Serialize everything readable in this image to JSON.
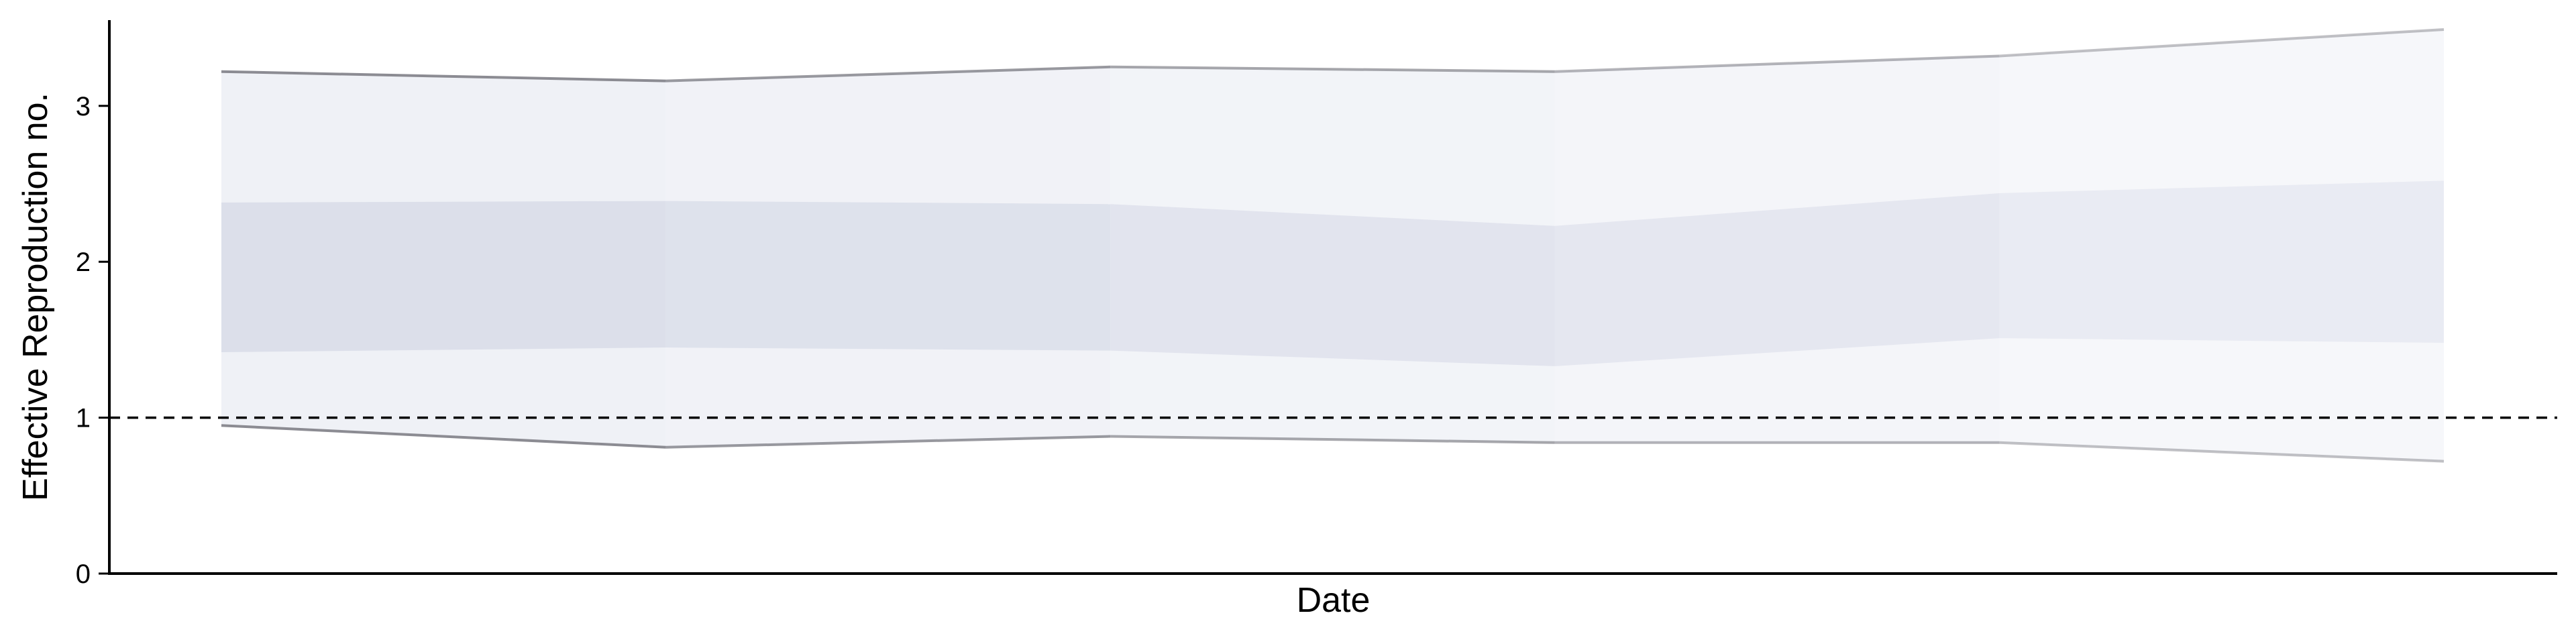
{
  "chart_data": {
    "type": "area",
    "xlabel": "Date",
    "ylabel": "Effective Reproduction no.",
    "x_tick_labels": [],
    "ylim": [
      0,
      3.55
    ],
    "yticks": [
      0,
      1,
      2,
      3
    ],
    "grid": false,
    "reference_line": {
      "y": 1,
      "style": "dashed"
    },
    "series": [
      {
        "points": [
          1,
          2,
          3,
          4,
          5,
          6
        ],
        "upper_90": [
          3.22,
          3.16,
          3.25,
          3.22,
          3.32,
          3.49
        ],
        "lower_90": [
          0.95,
          0.81,
          0.88,
          0.84,
          0.84,
          0.72
        ],
        "upper_50": [
          2.38,
          2.39,
          2.37,
          2.23,
          2.44,
          2.52
        ],
        "lower_50": [
          1.42,
          1.45,
          1.43,
          1.33,
          1.51,
          1.48
        ]
      }
    ],
    "colors": {
      "outer_band": "#eceef5",
      "inner_band": "#cfd3e3",
      "bound_line": "#7f7f87"
    }
  }
}
